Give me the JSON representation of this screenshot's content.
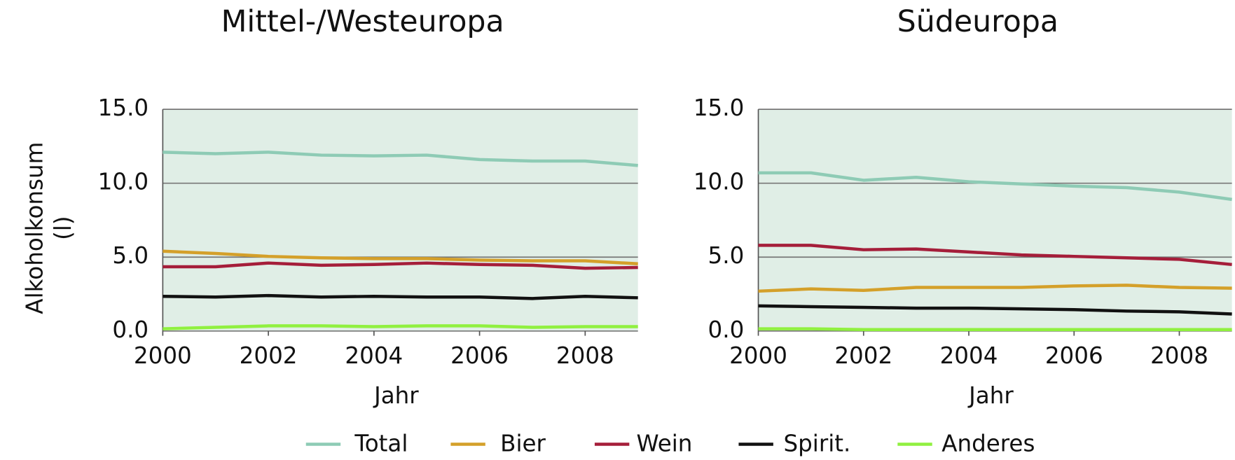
{
  "chart_data": [
    {
      "type": "line",
      "title": "Mittel-/Westeuropa",
      "xlabel": "Jahr",
      "ylabel": "Alkoholkonsum (l)",
      "x": [
        2000,
        2001,
        2002,
        2003,
        2004,
        2005,
        2006,
        2007,
        2008,
        2009
      ],
      "xlim": [
        2000,
        2009
      ],
      "xticks": [
        2000,
        2002,
        2004,
        2006,
        2008
      ],
      "ylim": [
        0,
        15
      ],
      "yticks": [
        {
          "value": 0,
          "label": "0.0"
        },
        {
          "value": 5,
          "label": "5.0"
        },
        {
          "value": 10,
          "label": "10.0"
        },
        {
          "value": 15,
          "label": "15.0"
        }
      ],
      "grid": true,
      "series": [
        {
          "name": "Total",
          "color": "#8ecbb5",
          "values": [
            12.1,
            12.0,
            12.1,
            11.9,
            11.85,
            11.9,
            11.6,
            11.5,
            11.5,
            11.2
          ]
        },
        {
          "name": "Bier",
          "color": "#d4a02a",
          "values": [
            5.4,
            5.25,
            5.05,
            4.95,
            4.9,
            4.9,
            4.8,
            4.75,
            4.75,
            4.55
          ]
        },
        {
          "name": "Wein",
          "color": "#a51e3a",
          "values": [
            4.35,
            4.35,
            4.6,
            4.45,
            4.5,
            4.6,
            4.5,
            4.45,
            4.25,
            4.3
          ]
        },
        {
          "name": "Spirit.",
          "color": "#111111",
          "values": [
            2.35,
            2.3,
            2.4,
            2.3,
            2.35,
            2.3,
            2.3,
            2.2,
            2.35,
            2.25
          ]
        },
        {
          "name": "Anderes",
          "color": "#90f040",
          "values": [
            0.15,
            0.25,
            0.35,
            0.35,
            0.3,
            0.35,
            0.35,
            0.25,
            0.3,
            0.3
          ]
        }
      ]
    },
    {
      "type": "line",
      "title": "Südeuropa",
      "xlabel": "Jahr",
      "x": [
        2000,
        2001,
        2002,
        2003,
        2004,
        2005,
        2006,
        2007,
        2008,
        2009
      ],
      "xlim": [
        2000,
        2009
      ],
      "xticks": [
        2000,
        2002,
        2004,
        2006,
        2008
      ],
      "ylim": [
        0,
        15
      ],
      "yticks": [
        {
          "value": 0,
          "label": "0.0"
        },
        {
          "value": 5,
          "label": "5.0"
        },
        {
          "value": 10,
          "label": "10.0"
        },
        {
          "value": 15,
          "label": "15.0"
        }
      ],
      "grid": true,
      "series": [
        {
          "name": "Total",
          "color": "#8ecbb5",
          "values": [
            10.7,
            10.7,
            10.2,
            10.4,
            10.1,
            9.95,
            9.8,
            9.7,
            9.4,
            8.9
          ]
        },
        {
          "name": "Bier",
          "color": "#d4a02a",
          "values": [
            2.7,
            2.85,
            2.75,
            2.95,
            2.95,
            2.95,
            3.05,
            3.1,
            2.95,
            2.9
          ]
        },
        {
          "name": "Wein",
          "color": "#a51e3a",
          "values": [
            5.8,
            5.8,
            5.5,
            5.55,
            5.35,
            5.15,
            5.05,
            4.95,
            4.85,
            4.5
          ]
        },
        {
          "name": "Spirit.",
          "color": "#111111",
          "values": [
            1.7,
            1.65,
            1.6,
            1.55,
            1.55,
            1.5,
            1.45,
            1.35,
            1.3,
            1.15
          ]
        },
        {
          "name": "Anderes",
          "color": "#90f040",
          "values": [
            0.15,
            0.15,
            0.1,
            0.1,
            0.1,
            0.1,
            0.1,
            0.1,
            0.1,
            0.1
          ]
        }
      ]
    }
  ]
}
